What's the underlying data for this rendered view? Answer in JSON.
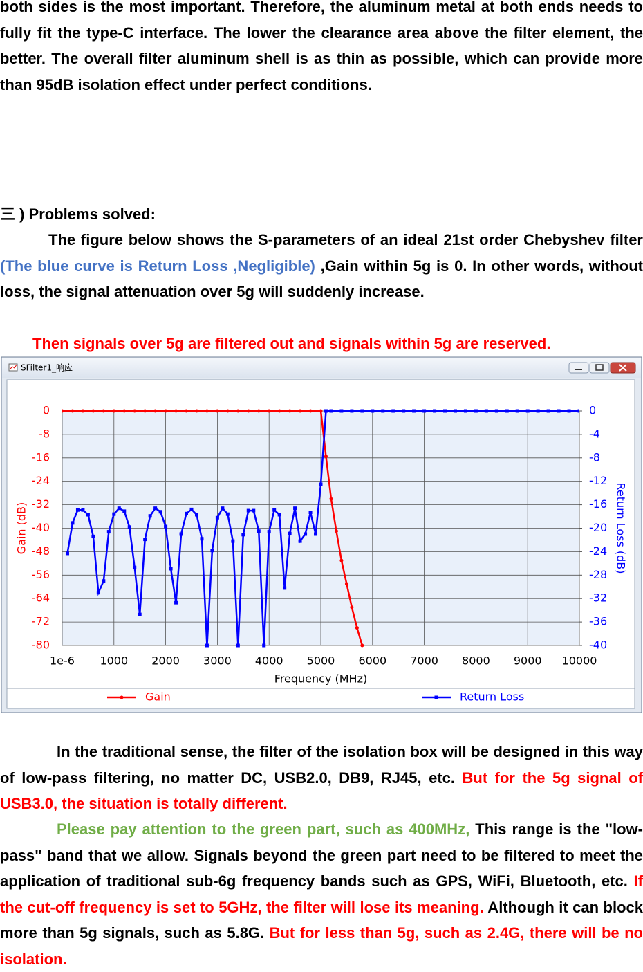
{
  "intro": {
    "runs": [
      {
        "text": "both sides is the most important. Therefore, the aluminum metal at both ends needs to fully fit the type-C interface. The lower the clearance area above the filter element, the better. The overall filter aluminum shell is as thin as possible, which can provide more than 95dB isolation effect under perfect conditions."
      }
    ]
  },
  "section": {
    "heading": "三 ) Problems solved:",
    "para1": {
      "runs": [
        {
          "text": "The figure below shows the S-parameters of an ideal 21st order Chebyshev filter "
        },
        {
          "text": "(The blue curve is Return Loss ,Negligible)",
          "color": "#4472c4"
        },
        {
          "text": " ,Gain within 5g is 0. In other words, without loss, the signal attenuation over 5g will suddenly increase."
        }
      ]
    },
    "para2": {
      "runs": [
        {
          "text": "Then signals over 5g are filtered out and signals within 5g are reserved.",
          "color": "#ff0000"
        }
      ]
    },
    "para3": {
      "runs": [
        {
          "text": "In the traditional sense, the filter of the isolation box will be designed in this way of low-pass filtering, no matter DC, USB2.0, DB9, RJ45, etc. "
        },
        {
          "text": "But for the 5g signal of USB3.0, the situation is totally different.",
          "color": "#ff0000"
        }
      ]
    },
    "para4": {
      "runs": [
        {
          "text": "Please pay attention to the green part, such as 400MHz,",
          "color": "#70ad47"
        },
        {
          "text": " This range is the \"low-pass\" band that we allow. Signals beyond the green part need to be filtered to meet the application of traditional sub-6g frequency bands such as GPS, WiFi, Bluetooth, etc. "
        },
        {
          "text": "If the cut-off frequency is set to 5GHz, the filter will lose its meaning.",
          "color": "#ff0000"
        },
        {
          "text": " Although it can block more than 5g signals, such as 5.8G. "
        },
        {
          "text": "But for less than 5g, such as 2.4G, there will be no isolation.",
          "color": "#ff0000"
        }
      ]
    }
  },
  "window": {
    "title": "SFilter1_响应"
  },
  "chart_data": {
    "type": "line",
    "xlabel": "Frequency (MHz)",
    "ylabel": "Gain (dB)",
    "y2label": "Return Loss (dB)",
    "xlim": [
      0,
      10000
    ],
    "xticks": [
      {
        "value": 1e-06,
        "label": "1e-6"
      },
      1000,
      2000,
      3000,
      4000,
      5000,
      6000,
      7000,
      8000,
      9000,
      10000
    ],
    "ylim": [
      -80,
      0
    ],
    "yticks": [
      0,
      -8,
      -16,
      -24,
      -32,
      -40,
      -48,
      -56,
      -64,
      -72,
      -80
    ],
    "y2lim": [
      -40,
      0
    ],
    "y2ticks": [
      0,
      -4,
      -8,
      -12,
      -16,
      -20,
      -24,
      -28,
      -32,
      -36,
      -40
    ],
    "grid": true,
    "legend": "bottom",
    "series": [
      {
        "name": "Gain",
        "color": "#ff0000",
        "x": [
          0,
          200,
          400,
          600,
          800,
          1000,
          1200,
          1400,
          1600,
          1800,
          2000,
          2200,
          2400,
          2600,
          2800,
          3000,
          3200,
          3400,
          3600,
          3800,
          4000,
          4200,
          4400,
          4600,
          4800,
          5000,
          5100,
          5200,
          5300,
          5400,
          5500,
          5600,
          5700,
          5800
        ],
        "values": [
          0,
          0,
          0,
          0,
          0,
          0,
          0,
          0,
          0,
          0,
          0,
          0,
          0,
          0,
          0,
          0,
          0,
          0,
          0,
          0,
          0,
          0,
          0,
          0,
          0,
          0,
          -15.5,
          -30,
          -41,
          -51,
          -59,
          -67,
          -74,
          -80
        ]
      },
      {
        "name": "Return Loss",
        "color": "#0000ff",
        "axis": "y2",
        "x": [
          100,
          200,
          300,
          400,
          500,
          600,
          700,
          800,
          900,
          1000,
          1100,
          1200,
          1300,
          1400,
          1500,
          1600,
          1700,
          1800,
          1900,
          2000,
          2100,
          2200,
          2300,
          2400,
          2500,
          2600,
          2700,
          2800,
          2900,
          3000,
          3100,
          3200,
          3300,
          3400,
          3500,
          3600,
          3700,
          3800,
          3900,
          4000,
          4100,
          4200,
          4300,
          4400,
          4500,
          4600,
          4700,
          4800,
          4900,
          5000,
          5100,
          5200,
          5400,
          5600,
          5800,
          6000,
          6200,
          6400,
          6600,
          6800,
          7000,
          7200,
          7400,
          7600,
          7800,
          8000,
          8200,
          8400,
          8600,
          8800,
          9000,
          9200,
          9400,
          9600,
          9800,
          10000
        ],
        "values": [
          -24.3,
          -19.1,
          -16.9,
          -16.9,
          -17.7,
          -21.4,
          -31,
          -29,
          -20.6,
          -17.6,
          -16.6,
          -17.1,
          -19.8,
          -26.7,
          -34.7,
          -21.9,
          -17.9,
          -16.6,
          -17.2,
          -19.7,
          -26.9,
          -32.7,
          -21,
          -17.5,
          -16.8,
          -17.7,
          -21.8,
          -40,
          -23.8,
          -18.2,
          -16.6,
          -17.6,
          -22.2,
          -40,
          -21.1,
          -17,
          -17,
          -20.5,
          -40,
          -20.6,
          -16.9,
          -17.7,
          -30.2,
          -20.9,
          -16.6,
          -22.2,
          -21,
          -17.3,
          -21,
          -12.5,
          0,
          0,
          0,
          0,
          0,
          0,
          0,
          0,
          0,
          0,
          0,
          0,
          0,
          0,
          0,
          0,
          0,
          0,
          0,
          0,
          0,
          0,
          0,
          0,
          0,
          0
        ]
      }
    ]
  }
}
